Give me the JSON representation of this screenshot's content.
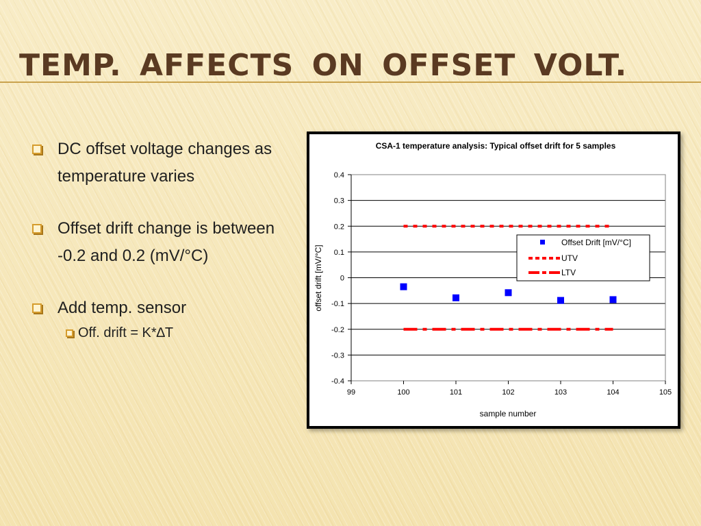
{
  "slide": {
    "title": "Temp.  affects  on  offset  Volt.",
    "bullets": [
      {
        "text": "DC offset voltage changes as temperature varies"
      },
      {
        "text": "Offset drift change is between   -0.2 and 0.2 (mV/°C)"
      },
      {
        "text": "Add temp. sensor",
        "sub": [
          "Off. drift = K*∆T"
        ]
      }
    ]
  },
  "chart_data": {
    "type": "scatter",
    "title": "CSA-1 temperature analysis: Typical offset drift for 5 samples",
    "xlabel": "sample number",
    "ylabel": "offset drift [mV/°C]",
    "xlim": [
      99,
      105
    ],
    "ylim": [
      -0.4,
      0.4
    ],
    "xticks": [
      99,
      100,
      101,
      102,
      103,
      104,
      105
    ],
    "yticks": [
      0.4,
      0.3,
      0.2,
      0.1,
      0,
      -0.1,
      -0.2,
      -0.3,
      -0.4
    ],
    "ytick_labels": [
      "0.4",
      "0.3",
      "0.2",
      "0.1",
      "0",
      "-0.1",
      "-0.2",
      "-0.3",
      "-0.4"
    ],
    "grid": "horizontal",
    "legend_position": "right",
    "series": [
      {
        "name": "Offset Drift [mV/°C]",
        "type": "scatter",
        "color": "#0000ff",
        "x": [
          100,
          101,
          102,
          103,
          104
        ],
        "y": [
          -0.035,
          -0.078,
          -0.058,
          -0.088,
          -0.085
        ]
      },
      {
        "name": "UTV",
        "type": "line",
        "style": "dotted",
        "color": "#ff0000",
        "x": [
          100,
          104
        ],
        "y": [
          0.2,
          0.2
        ]
      },
      {
        "name": "LTV",
        "type": "line",
        "style": "dash-dot",
        "color": "#ff0000",
        "x": [
          100,
          104
        ],
        "y": [
          -0.2,
          -0.2
        ]
      }
    ]
  }
}
